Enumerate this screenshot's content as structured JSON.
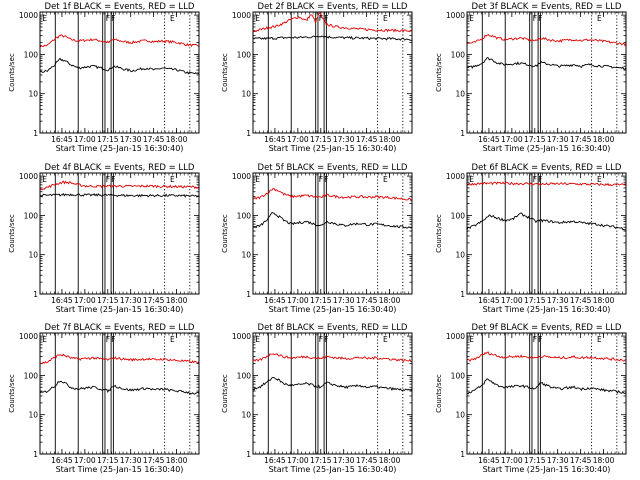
{
  "colors": {
    "events": "#000000",
    "lld": "#e00000",
    "background": "#ffffff"
  },
  "panels": [
    {
      "title": "Det 1f BLACK = Events, RED = LLD",
      "ylabel": "Counts/sec",
      "xlabel": "Start Time (25-Jan-15 16:30:40)"
    },
    {
      "title": "Det 2f BLACK = Events, RED = LLD",
      "ylabel": "Counts/sec",
      "xlabel": "Start Time (25-Jan-15 16:30:40)"
    },
    {
      "title": "Det 3f BLACK = Events, RED = LLD",
      "ylabel": "Counts/sec",
      "xlabel": "Start Time (25-Jan-15 16:30:40)"
    },
    {
      "title": "Det 4f BLACK = Events, RED = LLD",
      "ylabel": "Counts/sec",
      "xlabel": "Start Time (25-Jan-15 16:30:40)"
    },
    {
      "title": "Det 5f BLACK = Events, RED = LLD",
      "ylabel": "Counts/sec",
      "xlabel": "Start Time (25-Jan-15 16:30:40)"
    },
    {
      "title": "Det 6f BLACK = Events, RED = LLD",
      "ylabel": "Counts/sec",
      "xlabel": "Start Time (25-Jan-15 16:30:40)"
    },
    {
      "title": "Det 7f BLACK = Events, RED = LLD",
      "ylabel": "Counts/sec",
      "xlabel": "Start Time (25-Jan-15 16:30:40)"
    },
    {
      "title": "Det 8f BLACK = Events, RED = LLD",
      "ylabel": "Counts/sec",
      "xlabel": "Start Time (25-Jan-15 16:30:40)"
    },
    {
      "title": "Det 9f BLACK = Events, RED = LLD",
      "ylabel": "Counts/sec",
      "xlabel": "Start Time (25-Jan-15 16:30:40)"
    }
  ],
  "chart_data": {
    "type": "line",
    "layout": "3x3 grid",
    "y_scale": "log",
    "ylim": [
      1,
      1200
    ],
    "y_ticks": [
      1,
      10,
      100,
      1000
    ],
    "y_tick_labels": [
      "1",
      "10",
      "100",
      "1000"
    ],
    "x_range_minutes": [
      0,
      104
    ],
    "x_ticks": [
      14.33,
      29.33,
      44.33,
      59.33,
      74.33,
      89.33
    ],
    "x_tick_labels": [
      "16:45",
      "17:00",
      "17:15",
      "17:30",
      "17:45",
      "18:00"
    ],
    "solid_markers": [
      10,
      25,
      41,
      42.5,
      46.5,
      48
    ],
    "dotted_markers": [
      81.5,
      98
    ],
    "marker_letters": [
      {
        "x": 1.5,
        "label": "E"
      },
      {
        "x": 43,
        "label": "F"
      },
      {
        "x": 46.5,
        "label": "F"
      },
      {
        "x": 85,
        "label": "E"
      }
    ],
    "series_by_panel": [
      {
        "events": {
          "x": [
            0,
            5,
            10,
            13,
            16,
            20,
            25,
            30,
            35,
            40,
            45,
            48,
            55,
            60,
            65,
            70,
            75,
            80,
            85,
            90,
            95,
            100,
            104
          ],
          "y": [
            35,
            38,
            55,
            75,
            70,
            55,
            45,
            48,
            50,
            45,
            40,
            50,
            42,
            38,
            42,
            45,
            40,
            45,
            42,
            40,
            35,
            33,
            32
          ]
        },
        "lld": {
          "x": [
            0,
            5,
            10,
            13,
            16,
            20,
            25,
            30,
            35,
            40,
            45,
            48,
            55,
            60,
            65,
            70,
            75,
            80,
            85,
            90,
            95,
            100,
            104
          ],
          "y": [
            160,
            170,
            250,
            300,
            290,
            240,
            220,
            230,
            240,
            220,
            200,
            240,
            210,
            200,
            215,
            225,
            210,
            220,
            210,
            200,
            180,
            170,
            165
          ]
        }
      },
      {
        "events": {
          "x": [
            0,
            10,
            20,
            30,
            40,
            44,
            48,
            55,
            60,
            70,
            80,
            90,
            100,
            104
          ],
          "y": [
            250,
            255,
            265,
            270,
            280,
            300,
            280,
            270,
            265,
            260,
            255,
            250,
            245,
            240
          ]
        },
        "lld": {
          "x": [
            0,
            5,
            10,
            15,
            20,
            25,
            30,
            35,
            38,
            41,
            44,
            45,
            48,
            50,
            55,
            60,
            65,
            70,
            80,
            90,
            100,
            104
          ],
          "y": [
            380,
            430,
            480,
            520,
            620,
            780,
            900,
            720,
            1050,
            650,
            1200,
            850,
            600,
            550,
            500,
            480,
            460,
            440,
            420,
            410,
            400,
            390
          ]
        }
      },
      {
        "events": {
          "x": [
            0,
            5,
            10,
            13,
            16,
            20,
            25,
            30,
            35,
            40,
            45,
            48,
            55,
            60,
            65,
            70,
            75,
            80,
            85,
            90,
            95,
            100,
            104
          ],
          "y": [
            45,
            50,
            60,
            80,
            75,
            60,
            55,
            58,
            60,
            55,
            50,
            62,
            55,
            50,
            52,
            55,
            50,
            55,
            52,
            50,
            48,
            45,
            45
          ]
        },
        "lld": {
          "x": [
            0,
            5,
            10,
            13,
            16,
            20,
            25,
            30,
            35,
            40,
            45,
            48,
            55,
            60,
            65,
            70,
            75,
            80,
            85,
            90,
            95,
            100,
            104
          ],
          "y": [
            190,
            200,
            250,
            320,
            300,
            260,
            240,
            250,
            260,
            240,
            220,
            260,
            230,
            220,
            230,
            240,
            225,
            235,
            225,
            215,
            200,
            190,
            180
          ]
        }
      },
      {
        "events": {
          "x": [
            0,
            10,
            20,
            30,
            40,
            50,
            60,
            70,
            80,
            90,
            100,
            104
          ],
          "y": [
            320,
            330,
            340,
            330,
            330,
            325,
            320,
            320,
            320,
            320,
            310,
            310
          ]
        },
        "lld": {
          "x": [
            0,
            5,
            10,
            15,
            20,
            25,
            30,
            40,
            50,
            60,
            70,
            80,
            90,
            100,
            104
          ],
          "y": [
            470,
            520,
            620,
            700,
            680,
            600,
            560,
            550,
            560,
            550,
            560,
            550,
            540,
            530,
            520
          ]
        }
      },
      {
        "events": {
          "x": [
            0,
            5,
            10,
            13,
            16,
            20,
            25,
            30,
            35,
            40,
            45,
            48,
            55,
            60,
            65,
            70,
            75,
            80,
            85,
            90,
            95,
            100,
            104
          ],
          "y": [
            50,
            55,
            80,
            120,
            100,
            75,
            60,
            65,
            70,
            60,
            55,
            70,
            60,
            55,
            60,
            62,
            58,
            60,
            57,
            55,
            52,
            50,
            50
          ]
        },
        "lld": {
          "x": [
            0,
            5,
            10,
            13,
            16,
            20,
            25,
            30,
            35,
            40,
            45,
            48,
            55,
            60,
            65,
            70,
            75,
            80,
            85,
            90,
            95,
            100,
            104
          ],
          "y": [
            260,
            290,
            380,
            480,
            440,
            350,
            300,
            310,
            320,
            300,
            290,
            330,
            300,
            290,
            295,
            300,
            290,
            300,
            290,
            285,
            270,
            260,
            250
          ]
        }
      },
      {
        "events": {
          "x": [
            0,
            5,
            10,
            15,
            20,
            25,
            30,
            35,
            40,
            45,
            48,
            55,
            60,
            65,
            70,
            75,
            80,
            85,
            90,
            95,
            100,
            104
          ],
          "y": [
            45,
            55,
            70,
            100,
            85,
            75,
            80,
            110,
            90,
            70,
            75,
            70,
            65,
            68,
            70,
            65,
            62,
            60,
            55,
            52,
            48,
            45
          ]
        },
        "lld": {
          "x": [
            0,
            10,
            20,
            30,
            40,
            50,
            60,
            70,
            80,
            90,
            100,
            104
          ],
          "y": [
            620,
            650,
            660,
            650,
            640,
            620,
            640,
            630,
            620,
            610,
            600,
            600
          ]
        }
      },
      {
        "events": {
          "x": [
            0,
            5,
            10,
            13,
            16,
            20,
            25,
            30,
            35,
            40,
            45,
            48,
            55,
            60,
            65,
            70,
            75,
            80,
            85,
            90,
            95,
            100,
            104
          ],
          "y": [
            35,
            40,
            55,
            75,
            65,
            50,
            45,
            48,
            50,
            45,
            40,
            55,
            45,
            42,
            45,
            47,
            43,
            45,
            42,
            40,
            38,
            35,
            35
          ]
        },
        "lld": {
          "x": [
            0,
            5,
            10,
            13,
            16,
            20,
            25,
            30,
            35,
            40,
            45,
            48,
            55,
            60,
            65,
            70,
            75,
            80,
            85,
            90,
            95,
            100,
            104
          ],
          "y": [
            200,
            220,
            290,
            340,
            320,
            280,
            260,
            270,
            280,
            260,
            250,
            280,
            260,
            250,
            255,
            265,
            250,
            260,
            250,
            240,
            230,
            220,
            215
          ]
        }
      },
      {
        "events": {
          "x": [
            0,
            5,
            10,
            13,
            16,
            20,
            25,
            30,
            35,
            40,
            45,
            48,
            55,
            60,
            65,
            70,
            75,
            80,
            85,
            90,
            95,
            100,
            104
          ],
          "y": [
            45,
            52,
            70,
            90,
            80,
            62,
            55,
            58,
            62,
            55,
            50,
            65,
            55,
            50,
            52,
            55,
            50,
            52,
            48,
            46,
            44,
            42,
            42
          ]
        },
        "lld": {
          "x": [
            0,
            5,
            10,
            13,
            16,
            20,
            25,
            30,
            35,
            40,
            45,
            48,
            55,
            60,
            65,
            70,
            75,
            80,
            85,
            90,
            95,
            100,
            104
          ],
          "y": [
            230,
            250,
            320,
            370,
            340,
            300,
            280,
            290,
            300,
            280,
            270,
            300,
            280,
            270,
            275,
            285,
            270,
            280,
            270,
            260,
            250,
            240,
            235
          ]
        }
      },
      {
        "events": {
          "x": [
            0,
            5,
            10,
            13,
            16,
            20,
            25,
            30,
            35,
            40,
            45,
            48,
            55,
            60,
            65,
            70,
            75,
            80,
            85,
            90,
            95,
            100,
            104
          ],
          "y": [
            35,
            42,
            55,
            80,
            70,
            55,
            50,
            52,
            55,
            50,
            45,
            65,
            50,
            45,
            48,
            50,
            45,
            48,
            45,
            42,
            40,
            38,
            36
          ]
        },
        "lld": {
          "x": [
            0,
            5,
            10,
            13,
            16,
            20,
            25,
            30,
            35,
            40,
            45,
            48,
            55,
            60,
            65,
            70,
            75,
            80,
            85,
            90,
            95,
            100,
            104
          ],
          "y": [
            240,
            260,
            330,
            380,
            350,
            310,
            290,
            300,
            310,
            290,
            280,
            310,
            290,
            280,
            285,
            295,
            280,
            290,
            280,
            270,
            260,
            250,
            245
          ]
        }
      }
    ]
  }
}
